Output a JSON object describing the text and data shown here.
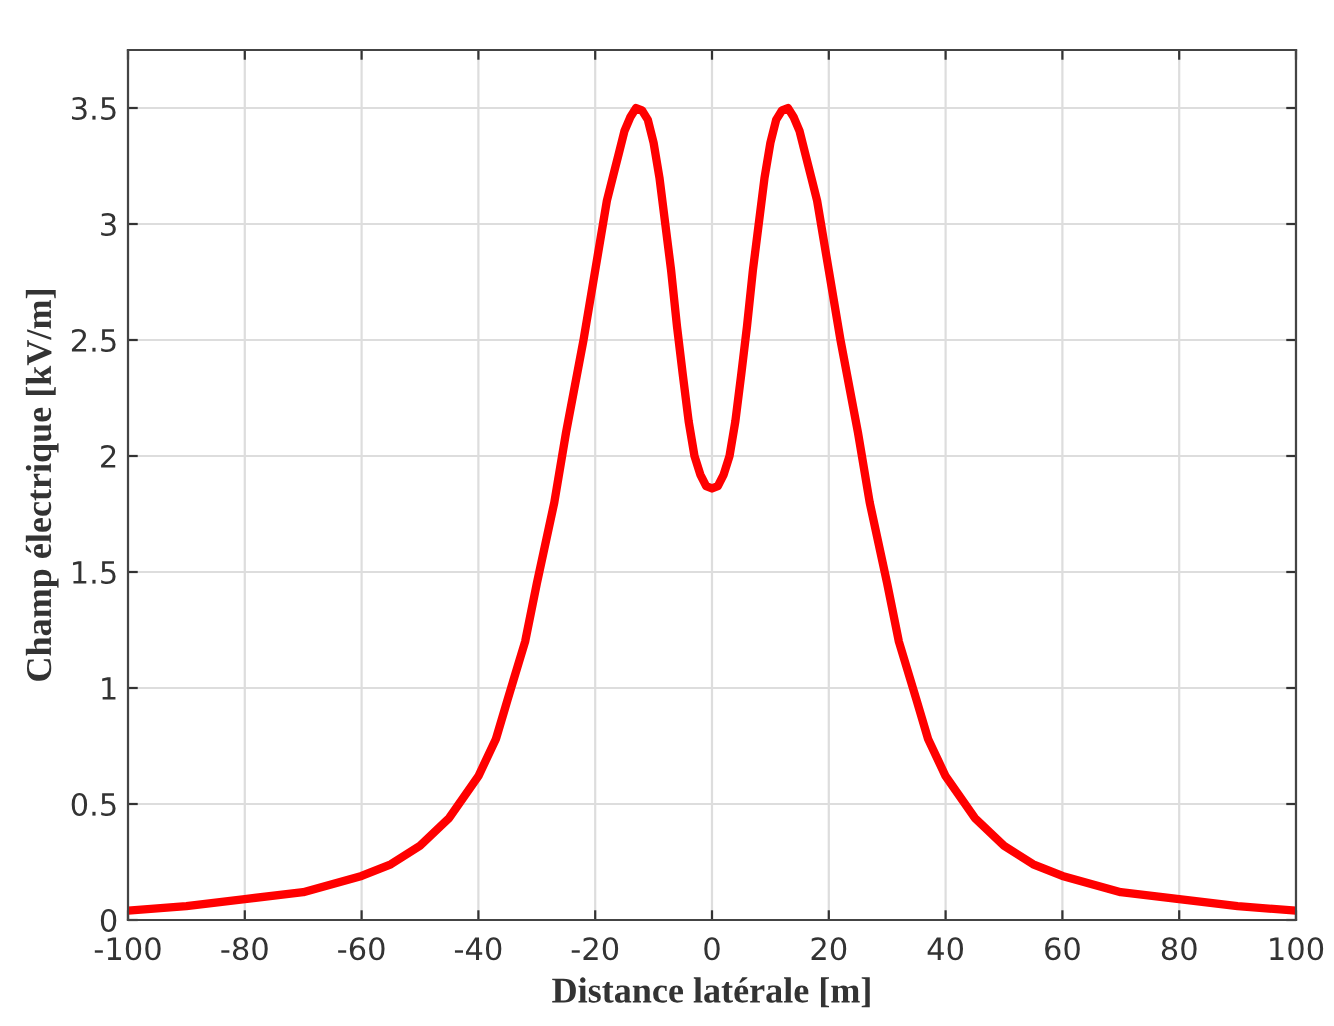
{
  "chart_data": {
    "type": "line",
    "xlabel": "Distance latérale [m]",
    "ylabel": "Champ électrique [kV/m]",
    "xlim": [
      -100,
      100
    ],
    "xticks": [
      -100,
      -80,
      -60,
      -40,
      -20,
      0,
      20,
      40,
      60,
      80,
      100
    ],
    "ylim": [
      0,
      3.75
    ],
    "yticks": [
      0,
      0.5,
      1,
      1.5,
      2,
      2.5,
      3,
      3.5
    ],
    "grid": true,
    "marker": "none",
    "line_style": "solid",
    "series": [
      {
        "color": "#ff0000",
        "x": [
          -100,
          -90,
          -80,
          -70,
          -60,
          -55,
          -50,
          -45,
          -40,
          -37,
          -35,
          -32,
          -30,
          -27,
          -25,
          -22,
          -20,
          -18,
          -17,
          -16,
          -15,
          -14,
          -13,
          -12,
          -11,
          -10,
          -9,
          -8,
          -7,
          -6,
          -5,
          -4,
          -3,
          -2,
          -1,
          0,
          1,
          2,
          3,
          4,
          5,
          6,
          7,
          8,
          9,
          10,
          11,
          12,
          13,
          14,
          15,
          16,
          17,
          18,
          20,
          22,
          25,
          27,
          30,
          32,
          35,
          37,
          40,
          45,
          50,
          55,
          60,
          70,
          80,
          90,
          100
        ],
        "values": [
          0.04,
          0.06,
          0.09,
          0.12,
          0.19,
          0.24,
          0.32,
          0.44,
          0.62,
          0.78,
          0.95,
          1.2,
          1.45,
          1.8,
          2.1,
          2.5,
          2.8,
          3.1,
          3.2,
          3.3,
          3.4,
          3.46,
          3.5,
          3.49,
          3.45,
          3.35,
          3.2,
          3.0,
          2.8,
          2.56,
          2.35,
          2.15,
          2.0,
          1.92,
          1.87,
          1.86,
          1.87,
          1.92,
          2.0,
          2.15,
          2.35,
          2.56,
          2.8,
          3.0,
          3.2,
          3.35,
          3.45,
          3.49,
          3.5,
          3.46,
          3.4,
          3.3,
          3.2,
          3.1,
          2.8,
          2.5,
          2.1,
          1.8,
          1.45,
          1.2,
          0.95,
          0.78,
          0.62,
          0.44,
          0.32,
          0.24,
          0.19,
          0.12,
          0.09,
          0.06,
          0.04
        ]
      }
    ]
  }
}
